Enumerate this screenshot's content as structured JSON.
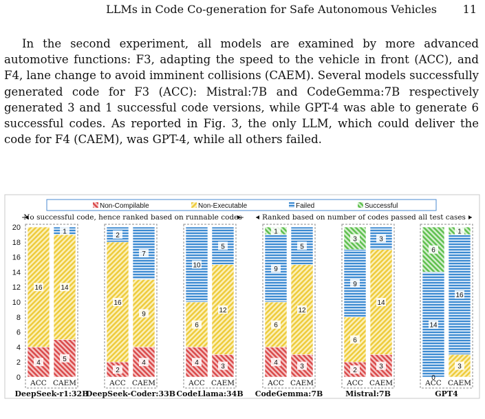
{
  "header": {
    "title": "LLMs in Code Co-generation for Safe Autonomous Vehicles",
    "page_number": "11"
  },
  "paragraph": "In the second experiment, all models are examined by more advanced automotive functions: F3, adapting the speed to the vehicle in front (ACC), and F4, lane change to avoid imminent collisions (CAEM). Several models successfully generated code for F3 (ACC): Mistral:7B and CodeGemma:7B respectively generated 3 and 1 successful code versions, while GPT-4 was able to generate 6 successful codes. As reported in Fig. 3, the only LLM, which could deliver the code for F4 (CAEM), was GPT-4, while all others failed.",
  "chart_data": {
    "type": "bar",
    "stacked": true,
    "ylim": [
      0,
      20
    ],
    "yticks": [
      0,
      2,
      4,
      6,
      8,
      10,
      12,
      14,
      16,
      18,
      20
    ],
    "legend_position": "top",
    "annotations": [
      "No successful code, hence ranked based on runnable codes",
      "Ranked based on number of codes passed all test cases"
    ],
    "series": [
      {
        "name": "Non-Compilable",
        "color": "#d94a4a"
      },
      {
        "name": "Non-Executable",
        "color": "#f2d24a"
      },
      {
        "name": "Failed",
        "color": "#3b8ad1"
      },
      {
        "name": "Successful",
        "color": "#5fbf4f"
      }
    ],
    "groups": [
      {
        "model": "DeepSeek-r1:32B",
        "bars": [
          {
            "label": "ACC",
            "values": [
              4,
              16,
              0,
              0
            ]
          },
          {
            "label": "CAEM",
            "values": [
              5,
              14,
              1,
              0
            ]
          }
        ]
      },
      {
        "model": "DeepSeek-Coder:33B",
        "bars": [
          {
            "label": "ACC",
            "values": [
              2,
              16,
              2,
              0
            ]
          },
          {
            "label": "CAEM",
            "values": [
              4,
              9,
              7,
              0
            ]
          }
        ]
      },
      {
        "model": "CodeLlama:34B",
        "bars": [
          {
            "label": "ACC",
            "values": [
              4,
              6,
              10,
              0
            ]
          },
          {
            "label": "CAEM",
            "values": [
              3,
              12,
              5,
              0
            ]
          }
        ]
      },
      {
        "model": "CodeGemma:7B",
        "bars": [
          {
            "label": "ACC",
            "values": [
              4,
              6,
              9,
              1
            ]
          },
          {
            "label": "CAEM",
            "values": [
              3,
              12,
              5,
              0
            ]
          }
        ]
      },
      {
        "model": "Mistral:7B",
        "bars": [
          {
            "label": "ACC",
            "values": [
              2,
              6,
              9,
              3
            ]
          },
          {
            "label": "CAEM",
            "values": [
              3,
              14,
              3,
              0
            ]
          }
        ]
      },
      {
        "model": "GPT4",
        "bars": [
          {
            "label": "ACC",
            "values": [
              0,
              0,
              14,
              6
            ]
          },
          {
            "label": "CAEM",
            "values": [
              0,
              3,
              16,
              1
            ]
          }
        ]
      }
    ]
  }
}
